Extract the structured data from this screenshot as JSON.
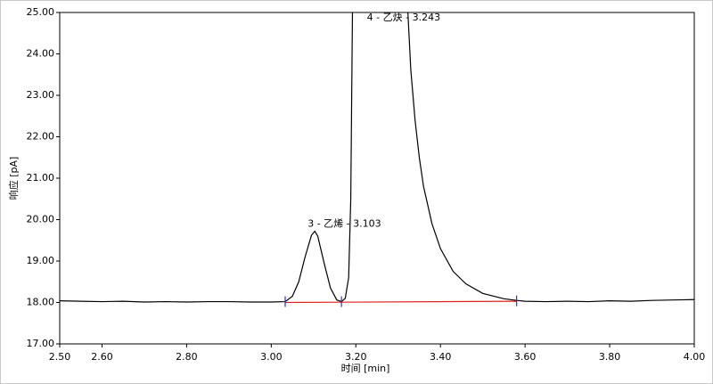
{
  "chart_data": {
    "type": "line",
    "x_label": "时间 [min]",
    "y_label": "响应 [pA]",
    "x": [
      2.5,
      2.55,
      2.6,
      2.65,
      2.7,
      2.75,
      2.8,
      2.85,
      2.9,
      2.95,
      3.0,
      3.033,
      3.05,
      3.065,
      3.08,
      3.095,
      3.103,
      3.11,
      3.125,
      3.14,
      3.155,
      3.166,
      3.175,
      3.183,
      3.188,
      3.192,
      3.243,
      3.323,
      3.33,
      3.34,
      3.35,
      3.36,
      3.38,
      3.4,
      3.43,
      3.46,
      3.5,
      3.55,
      3.58,
      3.6,
      3.65,
      3.7,
      3.75,
      3.8,
      3.85,
      3.9,
      3.95,
      4.0
    ],
    "series": [
      {
        "color": "#000000",
        "values": [
          18.04,
          18.03,
          18.02,
          18.03,
          18.01,
          18.02,
          18.01,
          18.02,
          18.02,
          18.01,
          18.01,
          18.02,
          18.15,
          18.5,
          19.1,
          19.62,
          19.72,
          19.6,
          18.95,
          18.35,
          18.06,
          18.02,
          18.1,
          18.6,
          20.5,
          25.0,
          null,
          25.0,
          23.6,
          22.4,
          21.5,
          20.8,
          19.9,
          19.3,
          18.75,
          18.45,
          18.22,
          18.09,
          18.05,
          18.03,
          18.02,
          18.03,
          18.02,
          18.04,
          18.03,
          18.05,
          18.06,
          18.07
        ]
      }
    ],
    "baseline": {
      "color": "#e02020",
      "x": [
        3.033,
        3.58
      ],
      "values": [
        18.0,
        18.03
      ]
    },
    "integration_marks": {
      "color": "#3030c0",
      "x": [
        3.033,
        3.166,
        3.58
      ],
      "values": [
        18.02,
        18.02,
        18.04
      ]
    },
    "annotations": [
      {
        "text": "3 - 乙烯 - 3.103",
        "x": 3.103,
        "y": 19.72
      },
      {
        "text": "4 - 乙炔 - 3.243",
        "x": 3.243,
        "y": 25.0
      }
    ],
    "xlim": [
      2.5,
      4.0
    ],
    "xticks": [
      {
        "value": 2.5,
        "label": "2.50"
      },
      {
        "value": 2.6,
        "label": "2.60"
      },
      {
        "value": 2.8,
        "label": "2.80"
      },
      {
        "value": 3.0,
        "label": "3.00"
      },
      {
        "value": 3.2,
        "label": "3.20"
      },
      {
        "value": 3.4,
        "label": "3.40"
      },
      {
        "value": 3.6,
        "label": "3.60"
      },
      {
        "value": 3.8,
        "label": "3.80"
      },
      {
        "value": 4.0,
        "label": "4.00"
      }
    ],
    "ylim": [
      17.0,
      25.0
    ],
    "yticks": [
      {
        "value": 17,
        "label": "17.00"
      },
      {
        "value": 18,
        "label": "18.00"
      },
      {
        "value": 19,
        "label": "19.00"
      },
      {
        "value": 20,
        "label": "20.00"
      },
      {
        "value": 21,
        "label": "21.00"
      },
      {
        "value": 22,
        "label": "22.00"
      },
      {
        "value": 23,
        "label": "23.00"
      },
      {
        "value": 24,
        "label": "24.00"
      },
      {
        "value": 25,
        "label": "25.00"
      }
    ]
  }
}
